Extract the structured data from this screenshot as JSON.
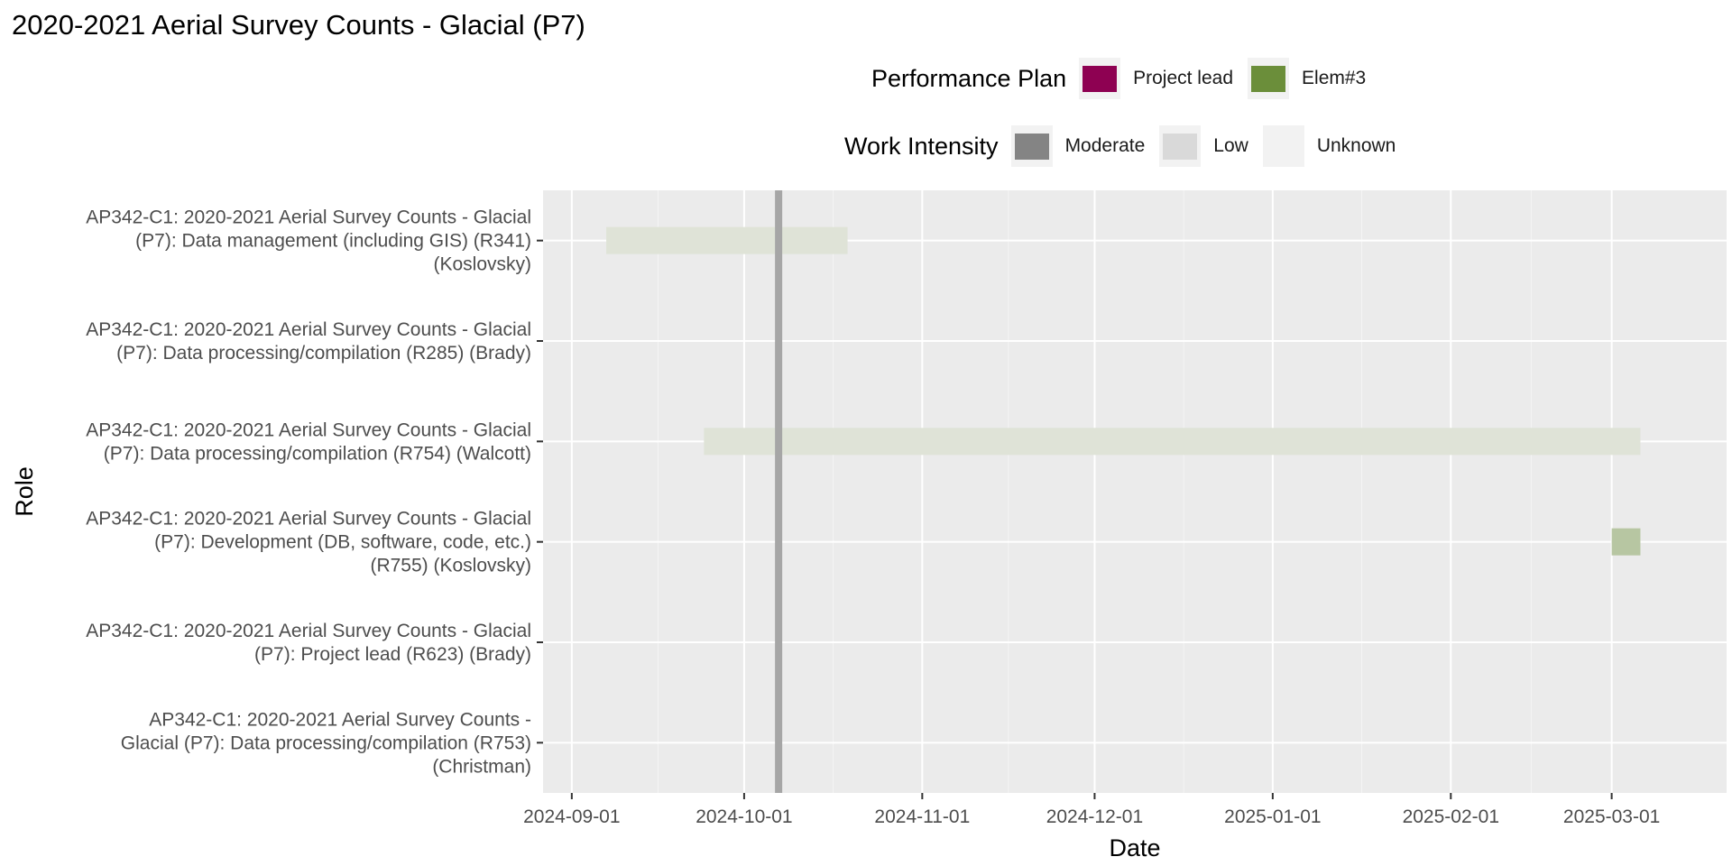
{
  "title": "2020-2021 Aerial Survey Counts - Glacial (P7)",
  "legends": {
    "plan": {
      "title": "Performance Plan",
      "items": [
        {
          "label": "Project lead",
          "color": "#8e0152"
        },
        {
          "label": "Elem#3",
          "color": "#6b8e3a"
        }
      ]
    },
    "intensity": {
      "title": "Work Intensity",
      "items": [
        {
          "label": "Moderate",
          "color": "#848484"
        },
        {
          "label": "Low",
          "color": "#d9d9d9"
        },
        {
          "label": "Unknown",
          "color": "#f2f2f2"
        }
      ]
    }
  },
  "chart_data": {
    "type": "gantt",
    "xlabel": "Date",
    "ylabel": "Role",
    "xlim": [
      "2024-08-27",
      "2025-03-21"
    ],
    "x_ticks": [
      "2024-09-01",
      "2024-10-01",
      "2024-11-01",
      "2024-12-01",
      "2025-01-01",
      "2025-02-01",
      "2025-03-01"
    ],
    "reference_line": {
      "date": "2024-10-07",
      "color": "#a6a6a6"
    },
    "grid": true,
    "panel_color": "#ebebeb",
    "legend_position": "top",
    "roles": [
      {
        "lines": [
          "AP342-C1: 2020-2021 Aerial Survey Counts - Glacial",
          "(P7): Data management (including GIS) (R341)",
          "(Koslovsky)"
        ]
      },
      {
        "lines": [
          "AP342-C1: 2020-2021 Aerial Survey Counts - Glacial",
          "(P7): Data processing/compilation (R285) (Brady)"
        ]
      },
      {
        "lines": [
          "AP342-C1: 2020-2021 Aerial Survey Counts - Glacial",
          "(P7): Data processing/compilation (R754) (Walcott)"
        ]
      },
      {
        "lines": [
          "AP342-C1: 2020-2021 Aerial Survey Counts - Glacial",
          "(P7): Development (DB, software, code, etc.)",
          "(R755) (Koslovsky)"
        ]
      },
      {
        "lines": [
          "AP342-C1: 2020-2021 Aerial Survey Counts - Glacial",
          "(P7): Project lead (R623) (Brady)"
        ]
      },
      {
        "lines": [
          "AP342-C1: 2020-2021 Aerial Survey Counts -",
          "Glacial (P7): Data processing/compilation (R753)",
          "(Christman)"
        ]
      }
    ],
    "bars": [
      {
        "role_index": 0,
        "start": "2024-09-07",
        "end": "2024-10-19",
        "plan": "Elem#3",
        "intensity": "Unknown",
        "color": "#dfe3d7"
      },
      {
        "role_index": 2,
        "start": "2024-09-24",
        "end": "2025-03-06",
        "plan": "Elem#3",
        "intensity": "Unknown",
        "color": "#dfe3d7"
      },
      {
        "role_index": 3,
        "start": "2025-03-01",
        "end": "2025-03-06",
        "plan": "Elem#3",
        "intensity": "Low",
        "color": "#b7c6a2"
      }
    ]
  }
}
